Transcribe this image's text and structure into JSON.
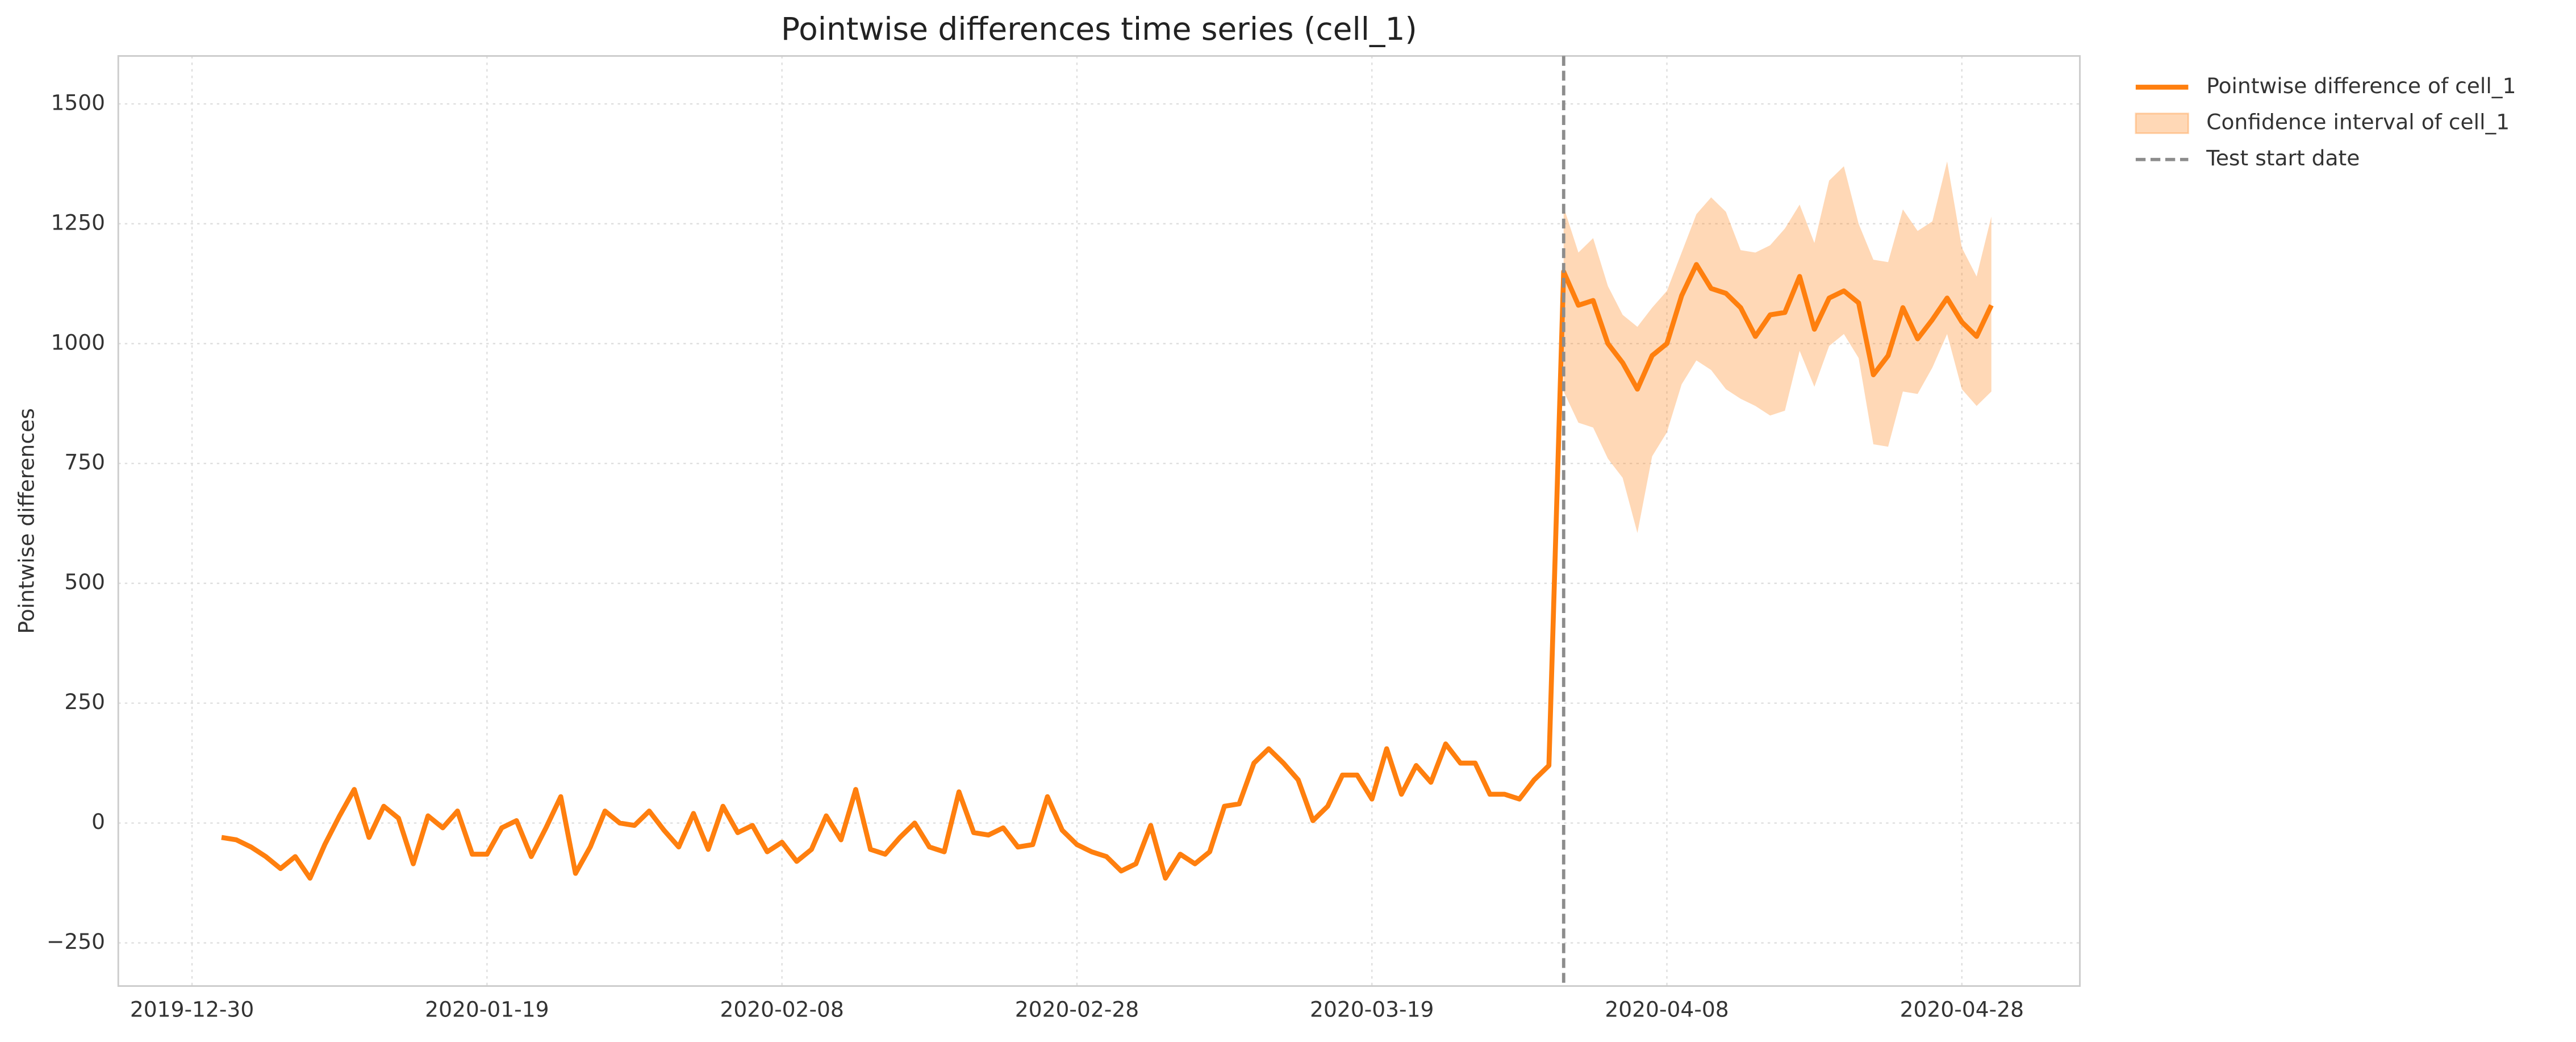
{
  "chart_data": {
    "type": "line",
    "title": "Pointwise differences time series (cell_1)",
    "y_label": "Pointwise differences",
    "x": [
      "2020-01-01",
      "2020-01-02",
      "2020-01-03",
      "2020-01-04",
      "2020-01-05",
      "2020-01-06",
      "2020-01-07",
      "2020-01-08",
      "2020-01-09",
      "2020-01-10",
      "2020-01-11",
      "2020-01-12",
      "2020-01-13",
      "2020-01-14",
      "2020-01-15",
      "2020-01-16",
      "2020-01-17",
      "2020-01-18",
      "2020-01-19",
      "2020-01-20",
      "2020-01-21",
      "2020-01-22",
      "2020-01-23",
      "2020-01-24",
      "2020-01-25",
      "2020-01-26",
      "2020-01-27",
      "2020-01-28",
      "2020-01-29",
      "2020-01-30",
      "2020-01-31",
      "2020-02-01",
      "2020-02-02",
      "2020-02-03",
      "2020-02-04",
      "2020-02-05",
      "2020-02-06",
      "2020-02-07",
      "2020-02-08",
      "2020-02-09",
      "2020-02-10",
      "2020-02-11",
      "2020-02-12",
      "2020-02-13",
      "2020-02-14",
      "2020-02-15",
      "2020-02-16",
      "2020-02-17",
      "2020-02-18",
      "2020-02-19",
      "2020-02-20",
      "2020-02-21",
      "2020-02-22",
      "2020-02-23",
      "2020-02-24",
      "2020-02-25",
      "2020-02-26",
      "2020-02-27",
      "2020-02-28",
      "2020-02-29",
      "2020-03-01",
      "2020-03-02",
      "2020-03-03",
      "2020-03-04",
      "2020-03-05",
      "2020-03-06",
      "2020-03-07",
      "2020-03-08",
      "2020-03-09",
      "2020-03-10",
      "2020-03-11",
      "2020-03-12",
      "2020-03-13",
      "2020-03-14",
      "2020-03-15",
      "2020-03-16",
      "2020-03-17",
      "2020-03-18",
      "2020-03-19",
      "2020-03-20",
      "2020-03-21",
      "2020-03-22",
      "2020-03-23",
      "2020-03-24",
      "2020-03-25",
      "2020-03-26",
      "2020-03-27",
      "2020-03-28",
      "2020-03-29",
      "2020-03-30",
      "2020-03-31",
      "2020-04-01",
      "2020-04-02",
      "2020-04-03",
      "2020-04-04",
      "2020-04-05",
      "2020-04-06",
      "2020-04-07",
      "2020-04-08",
      "2020-04-09",
      "2020-04-10",
      "2020-04-11",
      "2020-04-12",
      "2020-04-13",
      "2020-04-14",
      "2020-04-15",
      "2020-04-16",
      "2020-04-17",
      "2020-04-18",
      "2020-04-19",
      "2020-04-20",
      "2020-04-21",
      "2020-04-22",
      "2020-04-23",
      "2020-04-24",
      "2020-04-25",
      "2020-04-26",
      "2020-04-27",
      "2020-04-28",
      "2020-04-29",
      "2020-04-30"
    ],
    "series": [
      {
        "name": "Pointwise difference of cell_1",
        "color": "#ff7f0e",
        "values": [
          -30,
          -35,
          -50,
          -70,
          -95,
          -70,
          -115,
          -45,
          15,
          70,
          -30,
          35,
          10,
          -85,
          15,
          -10,
          25,
          -65,
          -65,
          -10,
          5,
          -70,
          -10,
          55,
          -105,
          -50,
          25,
          0,
          -5,
          25,
          -15,
          -50,
          20,
          -55,
          35,
          -20,
          -5,
          -60,
          -40,
          -80,
          -55,
          15,
          -35,
          70,
          -55,
          -65,
          -30,
          0,
          -50,
          -60,
          65,
          -20,
          -25,
          -10,
          -50,
          -45,
          55,
          -15,
          -45,
          -60,
          -70,
          -100,
          -85,
          -5,
          -115,
          -65,
          -85,
          -60,
          35,
          40,
          125,
          155,
          125,
          90,
          5,
          35,
          100,
          100,
          50,
          155,
          60,
          120,
          85,
          165,
          125,
          125,
          60,
          60,
          50,
          90,
          120,
          1150,
          1080,
          1090,
          1000,
          960,
          905,
          975,
          1000,
          1100,
          1165,
          1115,
          1105,
          1075,
          1015,
          1060,
          1065,
          1140,
          1030,
          1095,
          1110,
          1085,
          935,
          975,
          1075,
          1010,
          1050,
          1095,
          1045,
          1015,
          1080
        ]
      },
      {
        "name": "Confidence interval of cell_1",
        "color": "#ff7f0e",
        "alpha": 0.3,
        "lower": [
          null,
          null,
          null,
          null,
          null,
          null,
          null,
          null,
          null,
          null,
          null,
          null,
          null,
          null,
          null,
          null,
          null,
          null,
          null,
          null,
          null,
          null,
          null,
          null,
          null,
          null,
          null,
          null,
          null,
          null,
          null,
          null,
          null,
          null,
          null,
          null,
          null,
          null,
          null,
          null,
          null,
          null,
          null,
          null,
          null,
          null,
          null,
          null,
          null,
          null,
          null,
          null,
          null,
          null,
          null,
          null,
          null,
          null,
          null,
          null,
          null,
          null,
          null,
          null,
          null,
          null,
          null,
          null,
          null,
          null,
          null,
          null,
          null,
          null,
          null,
          null,
          null,
          null,
          null,
          null,
          null,
          null,
          null,
          null,
          null,
          null,
          null,
          null,
          null,
          null,
          null,
          900,
          835,
          825,
          760,
          720,
          605,
          765,
          815,
          915,
          965,
          945,
          905,
          885,
          870,
          850,
          860,
          985,
          910,
          995,
          1020,
          970,
          790,
          785,
          900,
          895,
          950,
          1020,
          905,
          870,
          900
        ],
        "upper": [
          null,
          null,
          null,
          null,
          null,
          null,
          null,
          null,
          null,
          null,
          null,
          null,
          null,
          null,
          null,
          null,
          null,
          null,
          null,
          null,
          null,
          null,
          null,
          null,
          null,
          null,
          null,
          null,
          null,
          null,
          null,
          null,
          null,
          null,
          null,
          null,
          null,
          null,
          null,
          null,
          null,
          null,
          null,
          null,
          null,
          null,
          null,
          null,
          null,
          null,
          null,
          null,
          null,
          null,
          null,
          null,
          null,
          null,
          null,
          null,
          null,
          null,
          null,
          null,
          null,
          null,
          null,
          null,
          null,
          null,
          null,
          null,
          null,
          null,
          null,
          null,
          null,
          null,
          null,
          null,
          null,
          null,
          null,
          null,
          null,
          null,
          null,
          null,
          null,
          null,
          null,
          1285,
          1190,
          1220,
          1120,
          1060,
          1035,
          1075,
          1110,
          1190,
          1270,
          1305,
          1275,
          1195,
          1190,
          1205,
          1240,
          1290,
          1210,
          1340,
          1370,
          1250,
          1175,
          1170,
          1280,
          1235,
          1255,
          1380,
          1200,
          1140,
          1265
        ]
      }
    ],
    "test_start": {
      "value": "2020-04-01",
      "label": "Test start date",
      "color": "#8c8c8c"
    },
    "xlim": [
      "2019-12-25",
      "2020-05-06"
    ],
    "xticks": [
      "2019-12-30",
      "2020-01-19",
      "2020-02-08",
      "2020-02-28",
      "2020-03-19",
      "2020-04-08",
      "2020-04-28"
    ],
    "ylim": [
      -340,
      1600
    ],
    "yticks": [
      {
        "value": -250,
        "label": "−250"
      },
      0,
      250,
      500,
      750,
      1000,
      1250,
      1500
    ],
    "grid": true,
    "legend": "outside-right"
  }
}
